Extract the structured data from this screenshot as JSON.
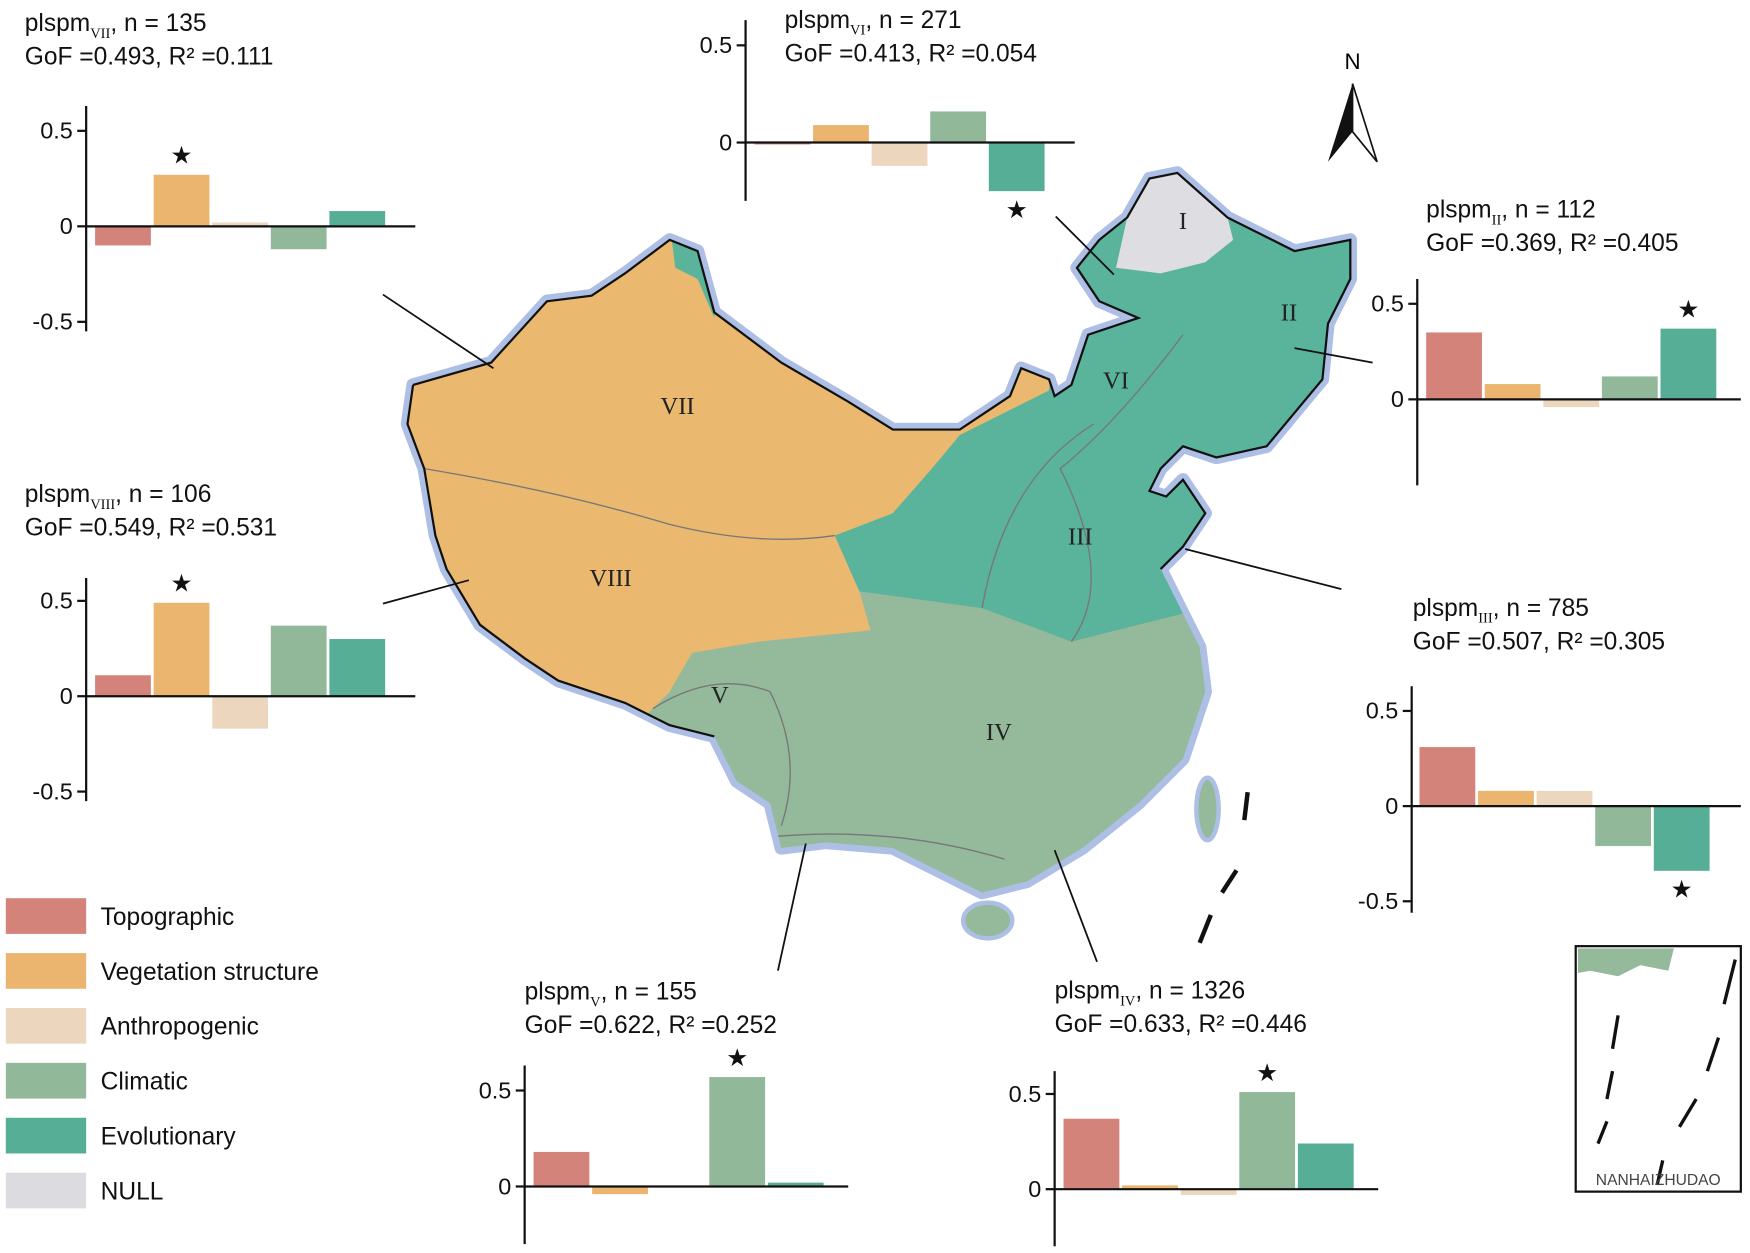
{
  "chart_data": [
    {
      "type": "bar",
      "title": "plspm",
      "title_sub": "VII",
      "title_rest": ", n = 135",
      "subtitle": "GoF =0.493, R² =0.111",
      "values": [
        -0.1,
        0.27,
        0.02,
        -0.12,
        0.08
      ],
      "ylim": [
        -0.55,
        0.63
      ],
      "yticks": [
        0.5,
        0,
        -0.5
      ],
      "star_index": 1
    },
    {
      "type": "bar",
      "title": "plspm",
      "title_sub": "VI",
      "title_rest": ", n = 271",
      "subtitle": "GoF =0.413, R² =0.054",
      "values": [
        -0.01,
        0.09,
        -0.12,
        0.16,
        -0.25
      ],
      "ylim": [
        -0.3,
        0.63
      ],
      "yticks": [
        0.5,
        0
      ],
      "star_index": 4
    },
    {
      "type": "bar",
      "title": "plspm",
      "title_sub": "II",
      "title_rest": ", n = 112",
      "subtitle": "GoF =0.369, R² =0.405",
      "values": [
        0.35,
        0.08,
        -0.04,
        0.12,
        0.37
      ],
      "ylim": [
        -0.45,
        0.63
      ],
      "yticks": [
        0.5,
        0
      ],
      "star_index": 4
    },
    {
      "type": "bar",
      "title": "plspm",
      "title_sub": "VIII",
      "title_rest": ", n = 106",
      "subtitle": "GoF =0.549, R² =0.531",
      "values": [
        0.11,
        0.49,
        -0.17,
        0.37,
        0.3
      ],
      "ylim": [
        -0.55,
        0.62
      ],
      "yticks": [
        0.5,
        0,
        -0.5
      ],
      "star_index": 1
    },
    {
      "type": "bar",
      "title": "plspm",
      "title_sub": "III",
      "title_rest": ", n = 785",
      "subtitle": "GoF =0.507, R² =0.305",
      "values": [
        0.31,
        0.08,
        0.08,
        -0.21,
        -0.34
      ],
      "ylim": [
        -0.56,
        0.63
      ],
      "yticks": [
        0.5,
        0,
        -0.5
      ],
      "star_index": 4
    },
    {
      "type": "bar",
      "title": "plspm",
      "title_sub": "V",
      "title_rest": ", n = 155",
      "subtitle": "GoF =0.622, R² =0.252",
      "values": [
        0.18,
        -0.04,
        0.0,
        0.57,
        0.02
      ],
      "ylim": [
        -0.3,
        0.63
      ],
      "yticks": [
        0.5,
        0
      ],
      "star_index": 3
    },
    {
      "type": "bar",
      "title": "plspm",
      "title_sub": "IV",
      "title_rest": ", n = 1326",
      "subtitle": "GoF =0.633, R² =0.446",
      "values": [
        0.37,
        0.02,
        -0.03,
        0.51,
        0.24
      ],
      "ylim": [
        -0.3,
        0.62
      ],
      "yticks": [
        0.5,
        0
      ],
      "star_index": 3
    }
  ],
  "star_marker": "★",
  "legend": [
    {
      "name": "Topographic",
      "color": "#d4837b"
    },
    {
      "name": "Vegetation structure",
      "color": "#ebb56f"
    },
    {
      "name": "Anthropogenic",
      "color": "#ecd6be"
    },
    {
      "name": "Climatic",
      "color": "#92b89a"
    },
    {
      "name": "Evolutionary",
      "color": "#55ae95"
    },
    {
      "name": "NULL",
      "color": "#dcdbdf"
    }
  ],
  "map": {
    "regions": [
      "I",
      "II",
      "III",
      "IV",
      "V",
      "VI",
      "VII",
      "VIII"
    ],
    "north": "N",
    "inset_label": "NANHAIZHUDAO"
  }
}
